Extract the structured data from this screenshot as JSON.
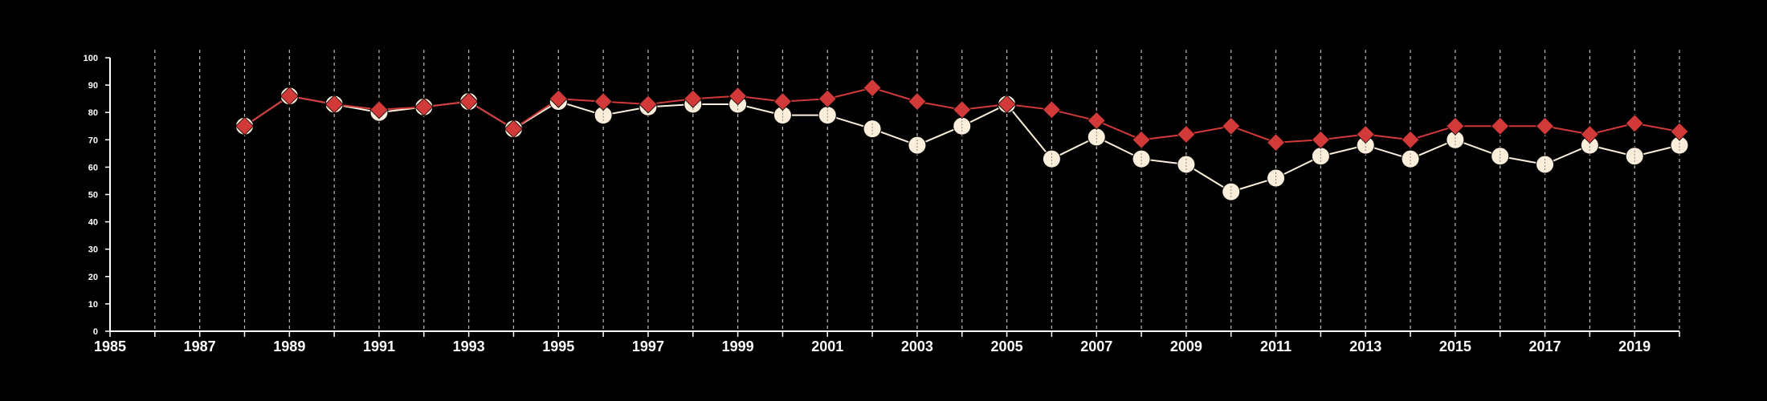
{
  "chart_data": {
    "type": "line",
    "title": "",
    "xlabel": "",
    "ylabel": "",
    "xlim": [
      1985,
      2020
    ],
    "ylim": [
      0,
      100
    ],
    "yticks": [
      0,
      10,
      20,
      30,
      40,
      50,
      60,
      70,
      80,
      90,
      100
    ],
    "xticks": [
      1985,
      1987,
      1989,
      1991,
      1993,
      1995,
      1997,
      1999,
      2001,
      2003,
      2005,
      2007,
      2009,
      2011,
      2013,
      2015,
      2017,
      2019
    ],
    "grid": "vertical dashed lines at every year",
    "legend": "none",
    "colors": {
      "background": "#000000",
      "axis": "#ffffff",
      "grid": "#bbbbbb"
    },
    "series": [
      {
        "color": "#fbefdc",
        "marker": "circle",
        "x": [
          1988,
          1989,
          1990,
          1991,
          1992,
          1993,
          1994,
          1995,
          1996,
          1997,
          1998,
          1999,
          2000,
          2001,
          2002,
          2003,
          2004,
          2005,
          2006,
          2007,
          2008,
          2009,
          2010,
          2011,
          2012,
          2013,
          2014,
          2015,
          2016,
          2017,
          2018,
          2019,
          2020
        ],
        "values": [
          75,
          86,
          83,
          80,
          82,
          84,
          74,
          84,
          79,
          82,
          83,
          83,
          79,
          79,
          74,
          68,
          75,
          83,
          63,
          71,
          63,
          61,
          51,
          56,
          64,
          68,
          63,
          70,
          64,
          61,
          68,
          64,
          68
        ]
      },
      {
        "color": "#d23a3a",
        "marker": "diamond",
        "x": [
          1988,
          1989,
          1990,
          1991,
          1992,
          1993,
          1994,
          1995,
          1996,
          1997,
          1998,
          1999,
          2000,
          2001,
          2002,
          2003,
          2004,
          2005,
          2006,
          2007,
          2008,
          2009,
          2010,
          2011,
          2012,
          2013,
          2014,
          2015,
          2016,
          2017,
          2018,
          2019,
          2020
        ],
        "values": [
          75,
          86,
          83,
          81,
          82,
          84,
          74,
          85,
          84,
          83,
          85,
          86,
          84,
          85,
          89,
          84,
          81,
          83,
          81,
          77,
          70,
          72,
          75,
          69,
          70,
          72,
          70,
          75,
          75,
          75,
          72,
          76,
          73
        ]
      }
    ]
  }
}
